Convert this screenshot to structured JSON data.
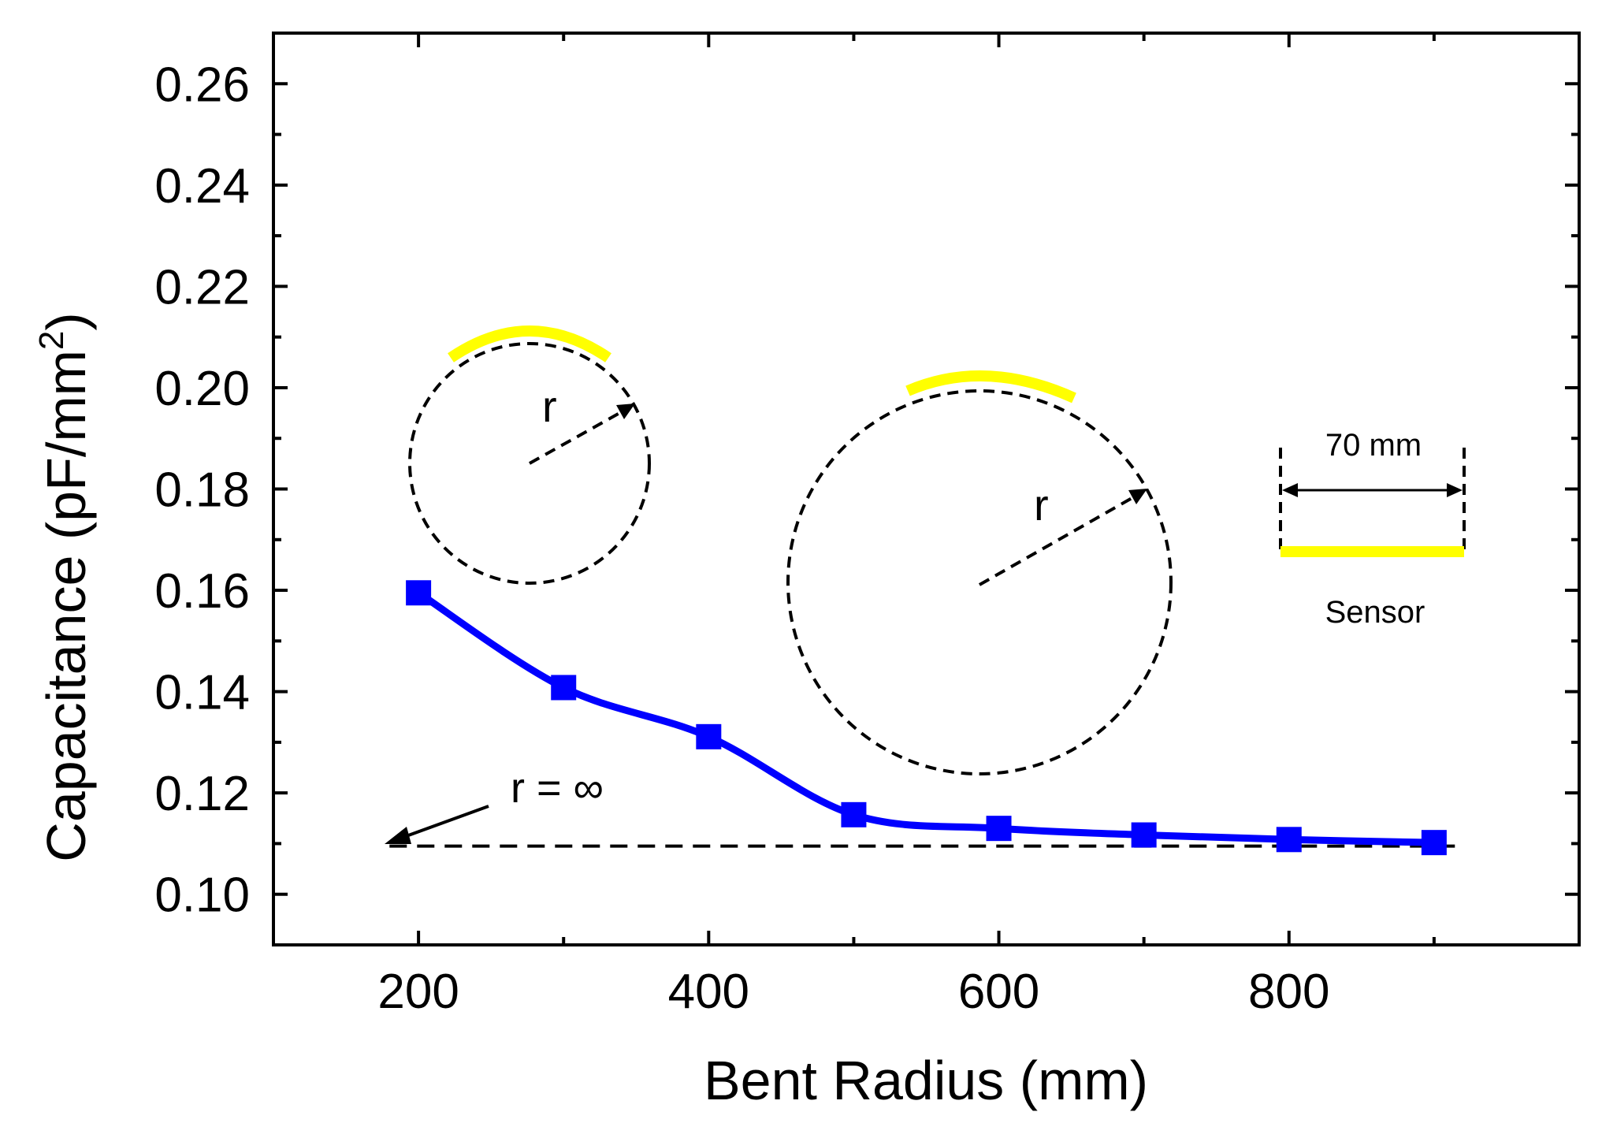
{
  "chart_data": {
    "type": "line",
    "title": "",
    "xlabel": "Bent Radius (mm)",
    "ylabel_main": "Capacitance (pF/mm",
    "ylabel_sup": "2",
    "ylabel_close": ")",
    "xlim": [
      100,
      1000
    ],
    "ylim": [
      0.09,
      0.27
    ],
    "xticks": [
      200,
      400,
      600,
      800
    ],
    "xtick_labels": [
      "200",
      "400",
      "600",
      "800"
    ],
    "yticks": [
      0.1,
      0.12,
      0.14,
      0.16,
      0.18,
      0.2,
      0.22,
      0.24,
      0.26
    ],
    "ytick_labels": [
      "0.10",
      "0.12",
      "0.14",
      "0.16",
      "0.18",
      "0.20",
      "0.22",
      "0.24",
      "0.26"
    ],
    "series": [
      {
        "name": "Capacitance",
        "marker": "square",
        "color": "#0000ff",
        "x": [
          200,
          300,
          400,
          500,
          600,
          700,
          800,
          900
        ],
        "values": [
          0.1595,
          0.1408,
          0.1311,
          0.1157,
          0.113,
          0.1117,
          0.1108,
          0.1102
        ]
      }
    ],
    "reference_line": {
      "label": "r = ∞",
      "y": 0.1095,
      "x_from": 180,
      "x_to": 920,
      "style": "dashed"
    },
    "annotations": {
      "radius_label": "r",
      "width_label": "70 mm",
      "sensor_label": "Sensor"
    },
    "colors": {
      "series": "#0000ff",
      "sensor": "#ffff00",
      "axis": "#000000"
    }
  }
}
